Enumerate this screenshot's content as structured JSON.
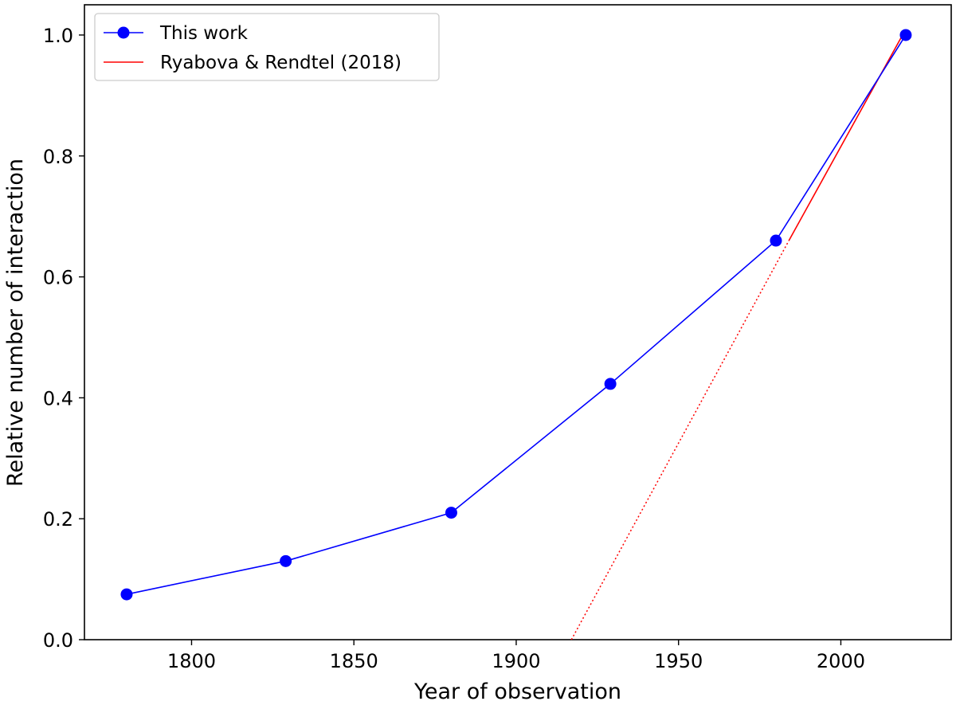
{
  "chart_data": {
    "type": "line",
    "title": "",
    "xlabel": "Year of observation",
    "ylabel": "Relative number of interaction",
    "xlim": [
      1767,
      2034
    ],
    "ylim": [
      0.0,
      1.05
    ],
    "xticks": [
      1800,
      1850,
      1900,
      1950,
      2000
    ],
    "yticks": [
      0.0,
      0.2,
      0.4,
      0.6,
      0.8,
      1.0
    ],
    "xtick_labels": [
      "1800",
      "1850",
      "1900",
      "1950",
      "2000"
    ],
    "ytick_labels": [
      "0.0",
      "0.2",
      "0.4",
      "0.6",
      "0.8",
      "1.0"
    ],
    "grid": false,
    "legend_position": "top-left",
    "series": [
      {
        "name": "This work",
        "color": "#0000ff",
        "marker": "circle",
        "x": [
          1780,
          1829,
          1880,
          1929,
          1980,
          2020
        ],
        "y": [
          0.075,
          0.13,
          0.21,
          0.423,
          0.66,
          1.0
        ]
      },
      {
        "name": "Ryabova & Rendtel (2018)",
        "color": "#ff0000",
        "marker": "none",
        "solid": {
          "x": [
            1984,
            2019
          ],
          "y": [
            0.66,
            1.0
          ]
        },
        "dotted": {
          "x": [
            1917,
            1984
          ],
          "y": [
            0.0,
            0.66
          ]
        }
      }
    ]
  }
}
